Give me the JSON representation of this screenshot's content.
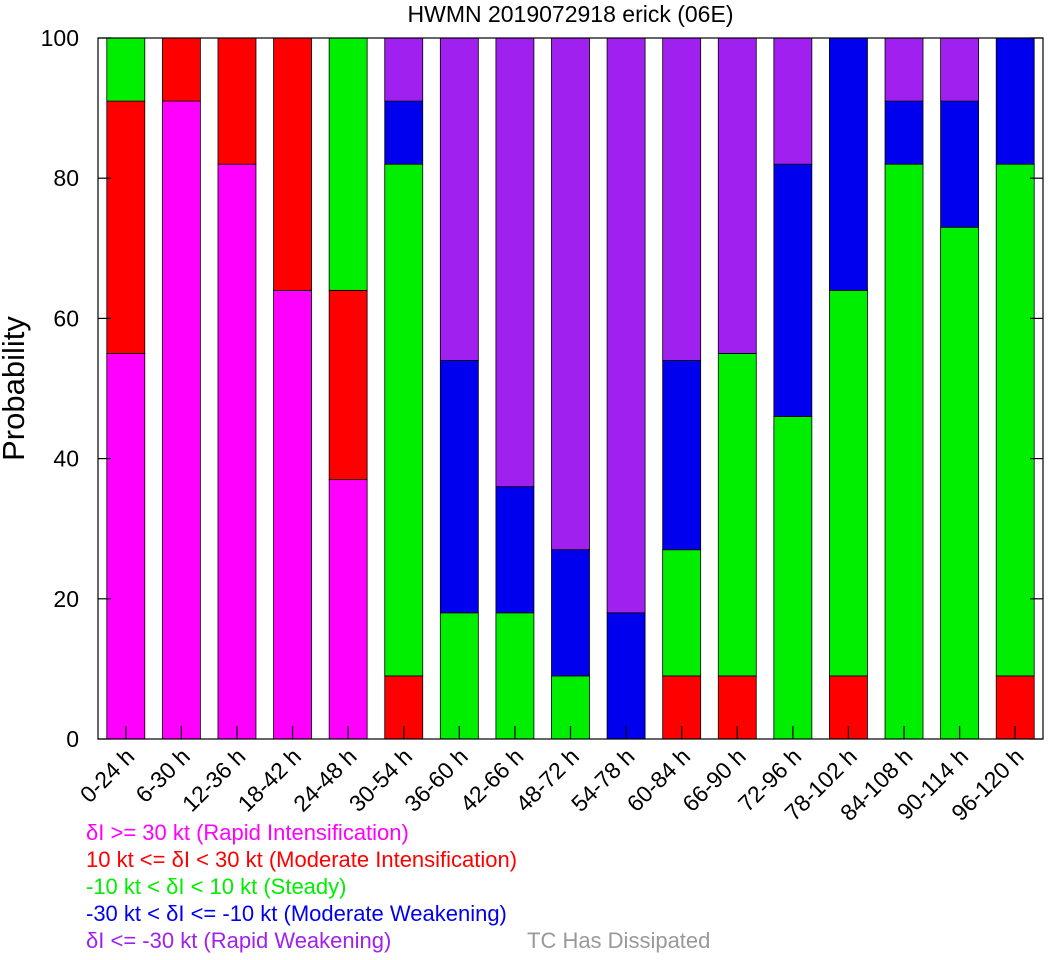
{
  "chart_data": {
    "type": "bar",
    "stacked": true,
    "title": "HWMN 2019072918 erick (06E)",
    "ylabel": "Probability",
    "xlabel": "",
    "ylim": [
      0,
      100
    ],
    "yticks": [
      "0",
      "20",
      "40",
      "60",
      "80",
      "100"
    ],
    "grid": false,
    "categories": [
      "0-24 h",
      "6-30 h",
      "12-36 h",
      "18-42 h",
      "24-48 h",
      "30-54 h",
      "36-60 h",
      "42-66 h",
      "48-72 h",
      "54-78 h",
      "60-84 h",
      "66-90 h",
      "72-96 h",
      "78-102 h",
      "84-108 h",
      "90-114 h",
      "96-120 h"
    ],
    "series": [
      {
        "key": "ri",
        "color": "#ff00ff",
        "values": [
          55,
          91,
          82,
          64,
          37,
          0,
          0,
          0,
          0,
          0,
          0,
          0,
          0,
          0,
          0,
          0,
          0
        ]
      },
      {
        "key": "mi",
        "color": "#ff0000",
        "values": [
          36,
          9,
          18,
          36,
          27,
          9,
          0,
          0,
          0,
          0,
          9,
          9,
          0,
          9,
          0,
          0,
          9
        ]
      },
      {
        "key": "st",
        "color": "#00ee00",
        "values": [
          9,
          0,
          0,
          0,
          36,
          73,
          18,
          18,
          9,
          0,
          18,
          46,
          46,
          55,
          82,
          73,
          73
        ]
      },
      {
        "key": "mw",
        "color": "#0000ee",
        "values": [
          0,
          0,
          0,
          0,
          0,
          9,
          36,
          18,
          18,
          18,
          27,
          0,
          36,
          36,
          9,
          18,
          18
        ]
      },
      {
        "key": "rw",
        "color": "#a020f0",
        "values": [
          0,
          0,
          0,
          0,
          0,
          9,
          46,
          64,
          73,
          82,
          46,
          45,
          18,
          0,
          9,
          9,
          0
        ]
      }
    ],
    "legend": [
      {
        "text": "δI >= 30 kt (Rapid Intensification)",
        "color": "#ff00ff"
      },
      {
        "text": "10 kt <= δI < 30 kt (Moderate Intensification)",
        "color": "#ff0000"
      },
      {
        "text": "-10 kt < δI < 10 kt (Steady)",
        "color": "#00ee00"
      },
      {
        "text": "-30 kt < δI <= -10 kt (Moderate Weakening)",
        "color": "#0000ee"
      },
      {
        "text": "δI <= -30 kt (Rapid Weakening)",
        "color": "#a020f0"
      }
    ],
    "note": {
      "text": "TC Has Dissipated",
      "color": "#999999"
    }
  }
}
